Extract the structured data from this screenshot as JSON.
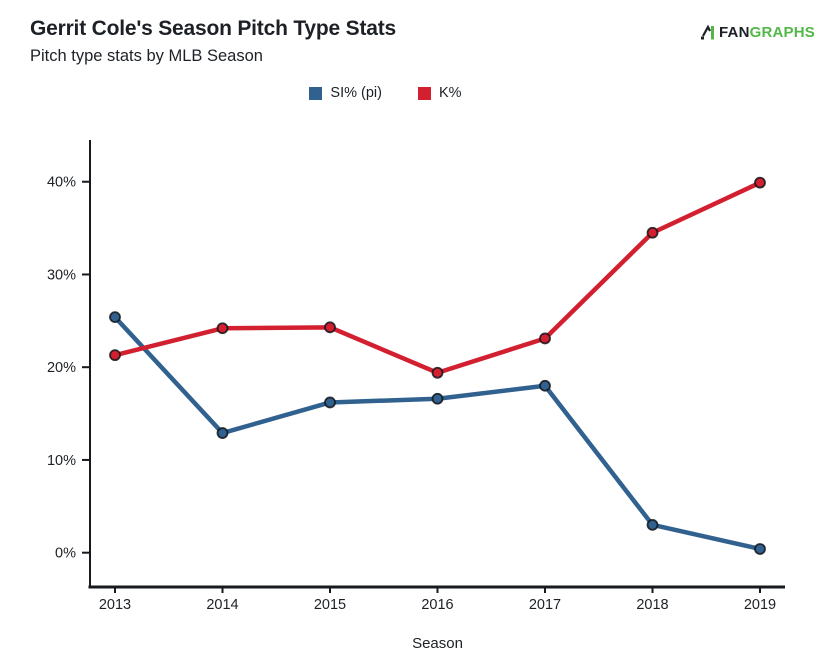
{
  "header": {
    "title": "Gerrit Cole's Season Pitch Type Stats",
    "subtitle": "Pitch type stats by MLB Season"
  },
  "logo": {
    "fan": "FAN",
    "graphs": "GRAPHS"
  },
  "colors": {
    "axis": "#16191d",
    "text": "#1d2126",
    "brand_green": "#52b848",
    "si_blue": "#31618f",
    "k_red": "#d22030"
  },
  "chart_data": {
    "type": "line",
    "title": "Gerrit Cole's Season Pitch Type Stats",
    "subtitle": "Pitch type stats by MLB Season",
    "categories": [
      "2013",
      "2014",
      "2015",
      "2016",
      "2017",
      "2018",
      "2019"
    ],
    "series": [
      {
        "name": "SI% (pi)",
        "color": "#31618f",
        "values": [
          25.4,
          12.9,
          16.2,
          16.6,
          18.0,
          3.0,
          0.4
        ]
      },
      {
        "name": "K%",
        "color": "#d22030",
        "values": [
          21.3,
          24.2,
          24.3,
          19.4,
          23.1,
          34.5,
          39.9
        ]
      }
    ],
    "xlabel": "Season",
    "ylabel": "",
    "yticks": [
      0,
      10,
      20,
      30,
      40
    ],
    "ytick_suffix": "%",
    "ylim": [
      -3.7,
      44.5
    ],
    "grid": false,
    "legend_position": "top"
  }
}
